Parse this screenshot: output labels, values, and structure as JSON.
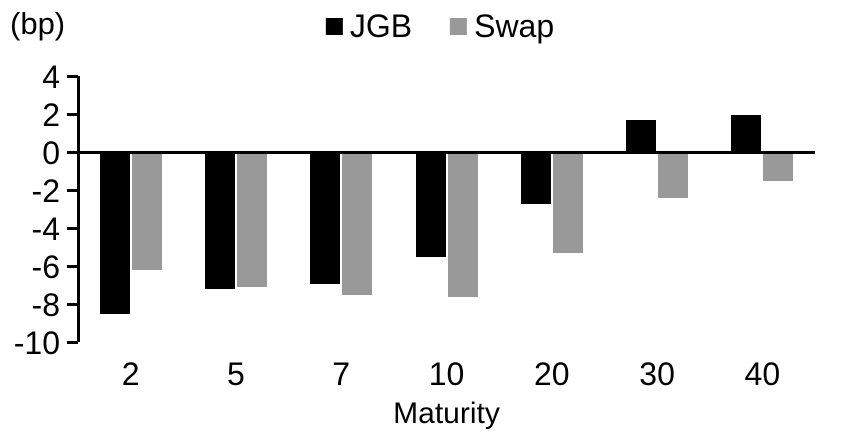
{
  "chart_data": {
    "type": "bar",
    "unit_label": "(bp)",
    "xlabel": "Maturity",
    "categories": [
      "2",
      "5",
      "7",
      "10",
      "20",
      "30",
      "40"
    ],
    "series": [
      {
        "name": "JGB",
        "color": "#000000",
        "values": [
          -8.5,
          -7.2,
          -6.9,
          -5.5,
          -2.7,
          1.7,
          2.0
        ]
      },
      {
        "name": "Swap",
        "color": "#999999",
        "values": [
          -6.2,
          -7.1,
          -7.5,
          -7.6,
          -5.3,
          -2.4,
          -1.5
        ]
      }
    ],
    "ylim": [
      -10,
      4
    ],
    "ytick_step": 2,
    "yticks": [
      4,
      2,
      0,
      -2,
      -4,
      -6,
      -8,
      -10
    ],
    "legend_position": "top-center",
    "grid": false,
    "baseline": 0
  }
}
